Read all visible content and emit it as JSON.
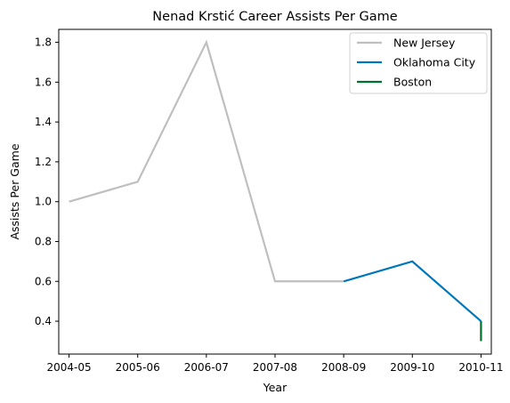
{
  "chart_data": {
    "type": "line",
    "title": "Nenad Krstić Career Assists Per Game",
    "xlabel": "Year",
    "ylabel": "Assists Per Game",
    "categories": [
      "2004-05",
      "2005-06",
      "2006-07",
      "2007-08",
      "2008-09",
      "2009-10",
      "2010-11"
    ],
    "ylim": [
      0.235,
      1.865
    ],
    "yticks": [
      0.4,
      0.6,
      0.8,
      1.0,
      1.2,
      1.4,
      1.6,
      1.8
    ],
    "ytick_labels": [
      "0.4",
      "0.6",
      "0.8",
      "1.0",
      "1.2",
      "1.4",
      "1.6",
      "1.8"
    ],
    "grid": false,
    "legend_position": "top-right",
    "series": [
      {
        "name": "New Jersey",
        "color": "#bfbfbf",
        "points": [
          [
            "2004-05",
            1.0
          ],
          [
            "2005-06",
            1.1
          ],
          [
            "2006-07",
            1.8
          ],
          [
            "2007-08",
            0.6
          ],
          [
            "2008-09",
            0.6
          ]
        ]
      },
      {
        "name": "Oklahoma City",
        "color": "#0077bb",
        "points": [
          [
            "2008-09",
            0.6
          ],
          [
            "2009-10",
            0.7
          ],
          [
            "2010-11",
            0.4
          ]
        ]
      },
      {
        "name": "Boston",
        "color": "#007030",
        "points": [
          [
            "2010-11",
            0.4
          ],
          [
            "2010-11",
            0.3
          ]
        ]
      }
    ]
  }
}
